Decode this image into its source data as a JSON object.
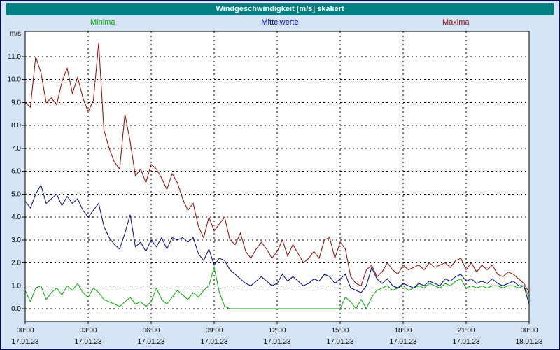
{
  "window_title": "Windgeschwindigkeit [m/s] skaliert",
  "colors": {
    "page_background": "#d2e4f5",
    "page_border": "#000080",
    "title_bar_background": "#008080",
    "title_bar_text": "#ffffff",
    "plot_background": "#ffffff",
    "grid_line": "#000000",
    "axis_text": "#000000"
  },
  "chart_data": {
    "type": "line",
    "title": "Windgeschwindigkeit [m/s] skaliert",
    "xlabel": "",
    "ylabel": "m/s",
    "ylim": [
      -0.55,
      12.1
    ],
    "xlim_hours": [
      0,
      24
    ],
    "grid": "dashed",
    "legend_position": "top",
    "y_ticks": [
      "0.0",
      "1.0",
      "2.0",
      "3.0",
      "4.0",
      "5.0",
      "6.0",
      "7.0",
      "8.0",
      "9.0",
      "10.0",
      "11.0"
    ],
    "x_tick_hours": [
      0,
      3,
      6,
      9,
      12,
      15,
      18,
      21,
      24
    ],
    "x_tick_labels": [
      "00:00",
      "03:00",
      "06:00",
      "09:00",
      "12:00",
      "15:00",
      "18:00",
      "21:00",
      "00:00"
    ],
    "x_date_labels": [
      "17.01.23",
      "17.01.23",
      "17.01.23",
      "17.01.23",
      "17.01.23",
      "17.01.23",
      "17.01.23",
      "17.01.23",
      "18.01.23"
    ],
    "x_hours": [
      0,
      0.25,
      0.5,
      0.75,
      1,
      1.25,
      1.5,
      1.75,
      2,
      2.25,
      2.5,
      2.75,
      3,
      3.25,
      3.5,
      3.75,
      4,
      4.25,
      4.5,
      4.75,
      5,
      5.25,
      5.5,
      5.75,
      6,
      6.25,
      6.5,
      6.75,
      7,
      7.25,
      7.5,
      7.75,
      8,
      8.25,
      8.5,
      8.75,
      9,
      9.25,
      9.5,
      9.75,
      10,
      10.25,
      10.5,
      10.75,
      11,
      11.25,
      11.5,
      11.75,
      12,
      12.25,
      12.5,
      12.75,
      13,
      13.25,
      13.5,
      13.75,
      14,
      14.25,
      14.5,
      14.75,
      15,
      15.25,
      15.5,
      15.75,
      16,
      16.25,
      16.5,
      16.75,
      17,
      17.25,
      17.5,
      17.75,
      18,
      18.25,
      18.5,
      18.75,
      19,
      19.25,
      19.5,
      19.75,
      20,
      20.25,
      20.5,
      20.75,
      21,
      21.25,
      21.5,
      21.75,
      22,
      22.25,
      22.5,
      22.75,
      23,
      23.25,
      23.5,
      23.75,
      24
    ],
    "series": [
      {
        "name": "Minima",
        "color": "#00aa00",
        "values": [
          0.8,
          0.3,
          0.9,
          1.0,
          0.4,
          0.7,
          0.9,
          0.6,
          1.0,
          0.8,
          1.1,
          0.7,
          0.5,
          0.9,
          0.7,
          0.4,
          0.3,
          0.2,
          0.1,
          0.3,
          0.5,
          0.2,
          0.3,
          0.1,
          0.3,
          0.9,
          0.4,
          0.2,
          0.5,
          0.8,
          0.6,
          0.4,
          0.7,
          0.5,
          0.8,
          1.0,
          1.8,
          0.7,
          0.1,
          0.0,
          0.0,
          0.0,
          0.0,
          0.0,
          0.0,
          0.0,
          0.0,
          0.0,
          0.0,
          0.0,
          0.0,
          0.0,
          0.0,
          0.0,
          0.0,
          0.0,
          0.0,
          0.0,
          0.0,
          0.0,
          0.0,
          0.5,
          0.3,
          0.0,
          0.4,
          0.0,
          0.5,
          0.8,
          0.9,
          1.0,
          0.8,
          0.9,
          1.0,
          0.8,
          0.9,
          1.0,
          0.9,
          1.1,
          1.0,
          0.9,
          1.1,
          1.0,
          1.2,
          1.3,
          0.9,
          1.0,
          0.9,
          1.0,
          0.9,
          1.0,
          1.0,
          0.9,
          1.0,
          1.0,
          0.9,
          1.0,
          0.5
        ]
      },
      {
        "name": "Mittelwerte",
        "color": "#000080",
        "values": [
          4.7,
          4.4,
          5.0,
          5.4,
          4.6,
          4.8,
          5.0,
          4.5,
          4.9,
          4.6,
          4.8,
          4.3,
          4.0,
          4.3,
          4.6,
          3.6,
          3.1,
          2.8,
          2.6,
          3.3,
          4.1,
          2.7,
          2.9,
          2.5,
          3.0,
          2.7,
          3.1,
          2.6,
          3.1,
          3.0,
          3.1,
          2.9,
          3.1,
          2.4,
          2.1,
          2.6,
          1.9,
          2.2,
          2.1,
          1.7,
          1.5,
          1.3,
          1.1,
          1.0,
          1.2,
          1.4,
          1.2,
          1.0,
          1.1,
          1.5,
          1.2,
          1.4,
          1.2,
          1.0,
          1.1,
          1.3,
          1.2,
          1.5,
          1.4,
          1.1,
          1.3,
          1.5,
          0.9,
          0.8,
          0.7,
          1.0,
          1.8,
          1.3,
          1.1,
          1.3,
          1.0,
          0.9,
          1.1,
          1.0,
          0.9,
          1.1,
          1.0,
          1.2,
          1.1,
          1.0,
          1.3,
          1.2,
          1.4,
          1.5,
          1.2,
          1.3,
          1.1,
          1.2,
          1.1,
          1.3,
          1.1,
          1.0,
          1.1,
          1.2,
          1.0,
          1.0,
          0.2
        ]
      },
      {
        "name": "Maxima",
        "color": "#990000",
        "values": [
          9.0,
          8.8,
          11.0,
          10.3,
          9.0,
          9.2,
          8.9,
          9.9,
          10.5,
          9.4,
          10.1,
          9.2,
          8.6,
          9.1,
          11.6,
          7.8,
          7.0,
          6.4,
          6.1,
          8.5,
          7.3,
          5.8,
          6.1,
          5.5,
          6.3,
          6.1,
          5.7,
          5.2,
          5.9,
          5.5,
          4.8,
          4.3,
          4.6,
          3.6,
          3.1,
          4.0,
          3.4,
          3.7,
          4.0,
          3.0,
          2.8,
          3.3,
          2.5,
          2.2,
          2.6,
          2.9,
          2.6,
          2.2,
          2.5,
          3.0,
          2.3,
          2.8,
          2.4,
          2.0,
          2.2,
          2.5,
          2.2,
          3.0,
          3.1,
          2.2,
          2.9,
          2.6,
          1.4,
          1.1,
          1.0,
          1.7,
          1.9,
          1.4,
          1.6,
          2.0,
          1.7,
          1.5,
          1.9,
          1.7,
          1.8,
          1.9,
          1.7,
          2.0,
          1.8,
          1.9,
          2.0,
          1.8,
          2.1,
          2.2,
          1.7,
          2.0,
          1.6,
          1.9,
          1.7,
          1.9,
          1.5,
          1.4,
          1.6,
          1.5,
          1.3,
          1.1,
          0.7
        ]
      }
    ]
  }
}
